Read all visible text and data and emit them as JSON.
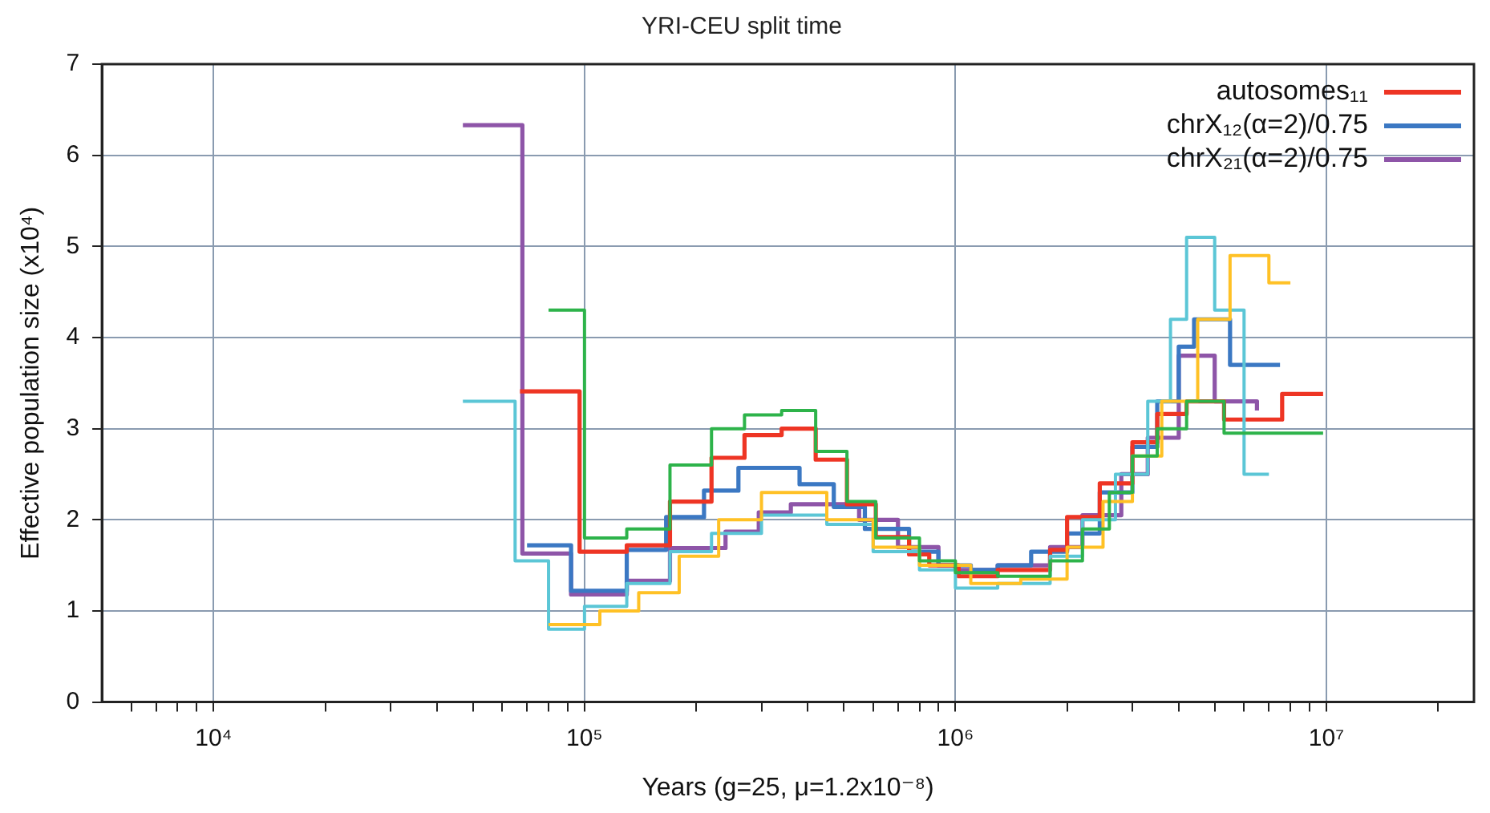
{
  "chart_data": {
    "type": "step",
    "title": "YRI-CEU split time",
    "xlabel": "Years (g=25, μ=1.2x10⁻⁸)",
    "ylabel": "Effective population size (x10⁴)",
    "log": "x",
    "grid": true,
    "legend": "top right",
    "line_style": "solid",
    "marker": "none",
    "xlim": [
      5000,
      25000000
    ],
    "ylim": [
      0,
      7
    ],
    "xticks": [
      {
        "value": 6000,
        "label": null
      },
      {
        "value": 7000,
        "label": null
      },
      {
        "value": 8000,
        "label": null
      },
      {
        "value": 9000,
        "label": null
      },
      {
        "value": 10000,
        "label": "10⁴"
      },
      {
        "value": 20000,
        "label": null
      },
      {
        "value": 30000,
        "label": null
      },
      {
        "value": 40000,
        "label": null
      },
      {
        "value": 50000,
        "label": null
      },
      {
        "value": 60000,
        "label": null
      },
      {
        "value": 70000,
        "label": null
      },
      {
        "value": 80000,
        "label": null
      },
      {
        "value": 90000,
        "label": null
      },
      {
        "value": 100000,
        "label": "10⁵"
      },
      {
        "value": 200000,
        "label": null
      },
      {
        "value": 300000,
        "label": null
      },
      {
        "value": 400000,
        "label": null
      },
      {
        "value": 500000,
        "label": null
      },
      {
        "value": 600000,
        "label": null
      },
      {
        "value": 700000,
        "label": null
      },
      {
        "value": 800000,
        "label": null
      },
      {
        "value": 900000,
        "label": null
      },
      {
        "value": 1000000,
        "label": "10⁶"
      },
      {
        "value": 2000000,
        "label": null
      },
      {
        "value": 3000000,
        "label": null
      },
      {
        "value": 4000000,
        "label": null
      },
      {
        "value": 5000000,
        "label": null
      },
      {
        "value": 6000000,
        "label": null
      },
      {
        "value": 7000000,
        "label": null
      },
      {
        "value": 8000000,
        "label": null
      },
      {
        "value": 9000000,
        "label": null
      },
      {
        "value": 10000000,
        "label": "10⁷"
      },
      {
        "value": 20000000,
        "label": null
      }
    ],
    "yticks": [
      0,
      1,
      2,
      3,
      4,
      5,
      6,
      7
    ],
    "series": [
      {
        "color": "#2db34a",
        "x": [
          80000,
          100000,
          130000,
          170000,
          220000,
          270000,
          340000,
          420000,
          510000,
          610000,
          800000,
          1000000,
          1300000,
          1800000,
          2200000,
          2600000,
          3000000,
          3500000,
          4200000,
          5300000,
          9800000
        ],
        "values": [
          4.3,
          1.8,
          1.9,
          2.6,
          3.0,
          3.15,
          3.2,
          2.75,
          2.2,
          1.8,
          1.55,
          1.42,
          1.38,
          1.55,
          1.9,
          2.3,
          2.7,
          3.0,
          3.3,
          2.95,
          2.95
        ]
      },
      {
        "color": "#ffc125",
        "x": [
          80000,
          110000,
          140000,
          180000,
          230000,
          300000,
          450000,
          600000,
          800000,
          1100000,
          1500000,
          2000000,
          2500000,
          3000000,
          3600000,
          4500000,
          5500000,
          7000000,
          8000000
        ],
        "values": [
          0.85,
          1.0,
          1.2,
          1.6,
          2.0,
          2.3,
          2.0,
          1.7,
          1.5,
          1.3,
          1.35,
          1.7,
          2.2,
          2.7,
          3.3,
          4.2,
          4.9,
          4.6,
          4.6
        ]
      },
      {
        "color": "#5bc6d6",
        "x": [
          47000,
          65000,
          80000,
          100000,
          130000,
          170000,
          220000,
          300000,
          450000,
          600000,
          800000,
          1000000,
          1300000,
          1800000,
          2200000,
          2700000,
          3300000,
          3800000,
          4200000,
          5000000,
          6000000,
          7000000
        ],
        "values": [
          3.3,
          1.55,
          0.8,
          1.05,
          1.3,
          1.65,
          1.85,
          2.05,
          1.95,
          1.65,
          1.45,
          1.25,
          1.3,
          1.6,
          2.0,
          2.5,
          3.3,
          4.2,
          5.1,
          4.3,
          2.5,
          2.5
        ]
      },
      {
        "name": "autosomes₁₁",
        "color": "#ee3524",
        "x": [
          67000,
          97000,
          130000,
          170000,
          220000,
          270000,
          340000,
          420000,
          510000,
          610000,
          750000,
          850000,
          1020000,
          1300000,
          1800000,
          2000000,
          2450000,
          3000000,
          3500000,
          4200000,
          5300000,
          7600000,
          9800000
        ],
        "values": [
          3.41,
          1.65,
          1.72,
          2.2,
          2.68,
          2.93,
          3.0,
          2.66,
          2.17,
          1.81,
          1.62,
          1.5,
          1.38,
          1.45,
          1.67,
          2.03,
          2.4,
          2.85,
          3.16,
          3.3,
          3.1,
          3.38,
          3.38
        ]
      },
      {
        "name": "chrX₁₂(α=2)/0.75",
        "color": "#3b78c3",
        "x": [
          70000,
          92000,
          130000,
          166000,
          210000,
          260000,
          380000,
          470000,
          570000,
          750000,
          900000,
          1100000,
          1300000,
          1600000,
          2000000,
          2450000,
          3000000,
          3500000,
          4000000,
          4400000,
          5500000,
          7500000
        ],
        "values": [
          1.72,
          1.22,
          1.67,
          2.03,
          2.32,
          2.57,
          2.39,
          2.14,
          1.9,
          1.65,
          1.5,
          1.45,
          1.5,
          1.65,
          1.85,
          2.3,
          2.8,
          3.3,
          3.9,
          4.2,
          3.7,
          3.7
        ]
      },
      {
        "name": "chrX₂₁(α=2)/0.75",
        "color": "#8e55a8",
        "x": [
          47000,
          68000,
          92000,
          130000,
          170000,
          240000,
          295000,
          360000,
          550000,
          700000,
          900000,
          1000000,
          1300000,
          1800000,
          2200000,
          2800000,
          3300000,
          4000000,
          5000000,
          6500000
        ],
        "values": [
          6.33,
          1.63,
          1.18,
          1.33,
          1.69,
          1.87,
          2.08,
          2.17,
          2.0,
          1.7,
          1.5,
          1.45,
          1.5,
          1.7,
          2.05,
          2.5,
          2.9,
          3.8,
          3.3,
          3.2
        ]
      }
    ]
  }
}
